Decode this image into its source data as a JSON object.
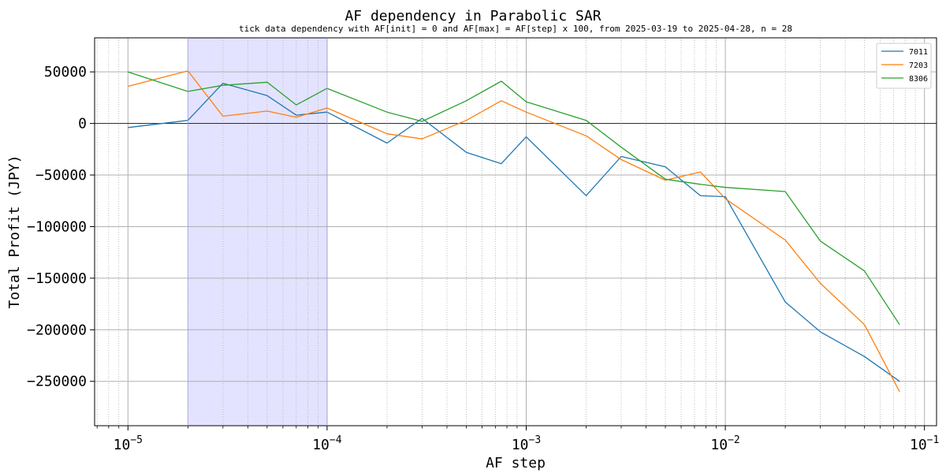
{
  "chart_data": {
    "type": "line",
    "title": "AF dependency in Parabolic SAR",
    "subtitle": "tick data dependency with AF[init] = 0 and AF[max] = AF[step] x 100, from 2025-03-19 to 2025-04-28, n = 28",
    "xlabel": "AF step",
    "ylabel": "Total Profit (JPY)",
    "xscale": "log",
    "xlim": [
      6.8e-06,
      0.115
    ],
    "ylim": [
      -293000,
      83000
    ],
    "grid": true,
    "legend_position": "top-right",
    "x_tick_labels": [
      {
        "value": 1e-05,
        "base": "10",
        "exp": "−5"
      },
      {
        "value": 0.0001,
        "base": "10",
        "exp": "−4"
      },
      {
        "value": 0.001,
        "base": "10",
        "exp": "−3"
      },
      {
        "value": 0.01,
        "base": "10",
        "exp": "−2"
      },
      {
        "value": 0.1,
        "base": "10",
        "exp": "−1"
      }
    ],
    "y_ticks": [
      50000,
      0,
      -50000,
      -100000,
      -150000,
      -200000,
      -250000
    ],
    "y_tick_labels": [
      "50000",
      "0",
      "−50000",
      "−100000",
      "−150000",
      "−200000",
      "−250000"
    ],
    "highlight_span": [
      2e-05,
      0.0001
    ],
    "x": [
      1e-05,
      2e-05,
      3e-05,
      5e-05,
      7e-05,
      0.0001,
      0.0002,
      0.0003,
      0.0005,
      0.00075,
      0.001,
      0.002,
      0.003,
      0.005,
      0.0075,
      0.01,
      0.02,
      0.03,
      0.05,
      0.075
    ],
    "series": [
      {
        "name": "7011",
        "color": "#1f77b4",
        "values": [
          -4000,
          3000,
          39000,
          27000,
          8000,
          11000,
          -19000,
          5000,
          -28000,
          -39000,
          -13000,
          -70000,
          -32000,
          -42000,
          -70000,
          -71000,
          -173000,
          -202000,
          -226000,
          -250000
        ]
      },
      {
        "name": "7203",
        "color": "#ff7f0e",
        "values": [
          36000,
          51000,
          7000,
          12000,
          6000,
          15000,
          -10000,
          -15000,
          3000,
          22000,
          11000,
          -12000,
          -35000,
          -55000,
          -47000,
          -73000,
          -113000,
          -155000,
          -195000,
          -260000
        ]
      },
      {
        "name": "8306",
        "color": "#2ca02c",
        "values": [
          50000,
          31000,
          37000,
          40000,
          18000,
          34000,
          11000,
          2000,
          22000,
          41000,
          21000,
          3000,
          -23000,
          -54000,
          -59000,
          -62000,
          -66000,
          -114000,
          -143000,
          -195000
        ]
      }
    ]
  }
}
